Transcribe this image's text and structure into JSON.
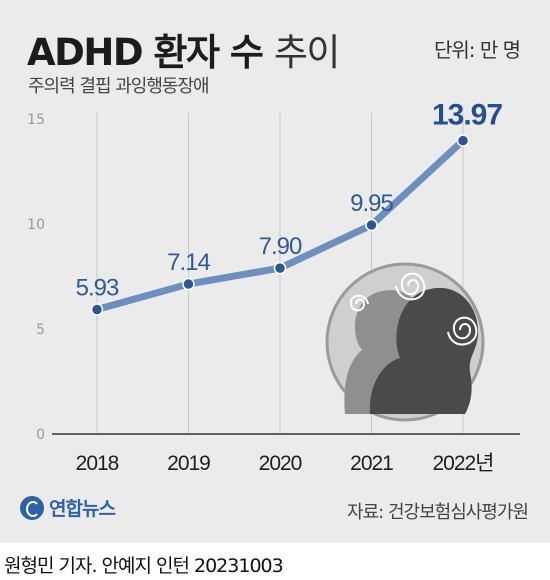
{
  "header": {
    "title_bold": "ADHD 환자 수",
    "title_light": "추이",
    "subtitle": "주의력 결핍 과잉행동장애",
    "unit": "단위: 만 명"
  },
  "footer": {
    "logo_text": "연합뉴스",
    "source": "자료: 건강보험심사평가원",
    "byline": "원형민 기자. 안예지 인턴  20231003"
  },
  "colors": {
    "line": "#6d8fbf",
    "marker": "#2f5592",
    "highlight_label": "#24508f",
    "label": "#2f5b97"
  },
  "illustration": {
    "name": "adhd-heads-illustration",
    "icon": "two-head-silhouettes-with-spirals"
  },
  "chart_data": {
    "type": "line",
    "title": "ADHD 환자 수 추이",
    "ylabel": "단위: 만 명",
    "categories": [
      "2018",
      "2019",
      "2020",
      "2021",
      "2022년"
    ],
    "values": [
      5.93,
      7.14,
      7.9,
      9.95,
      13.97
    ],
    "data_labels": [
      "5.93",
      "7.14",
      "7.90",
      "9.95",
      "13.97"
    ],
    "ylim": [
      0,
      15
    ],
    "yticks": [
      "0",
      "5",
      "10",
      "15"
    ],
    "grid": "vertical"
  }
}
